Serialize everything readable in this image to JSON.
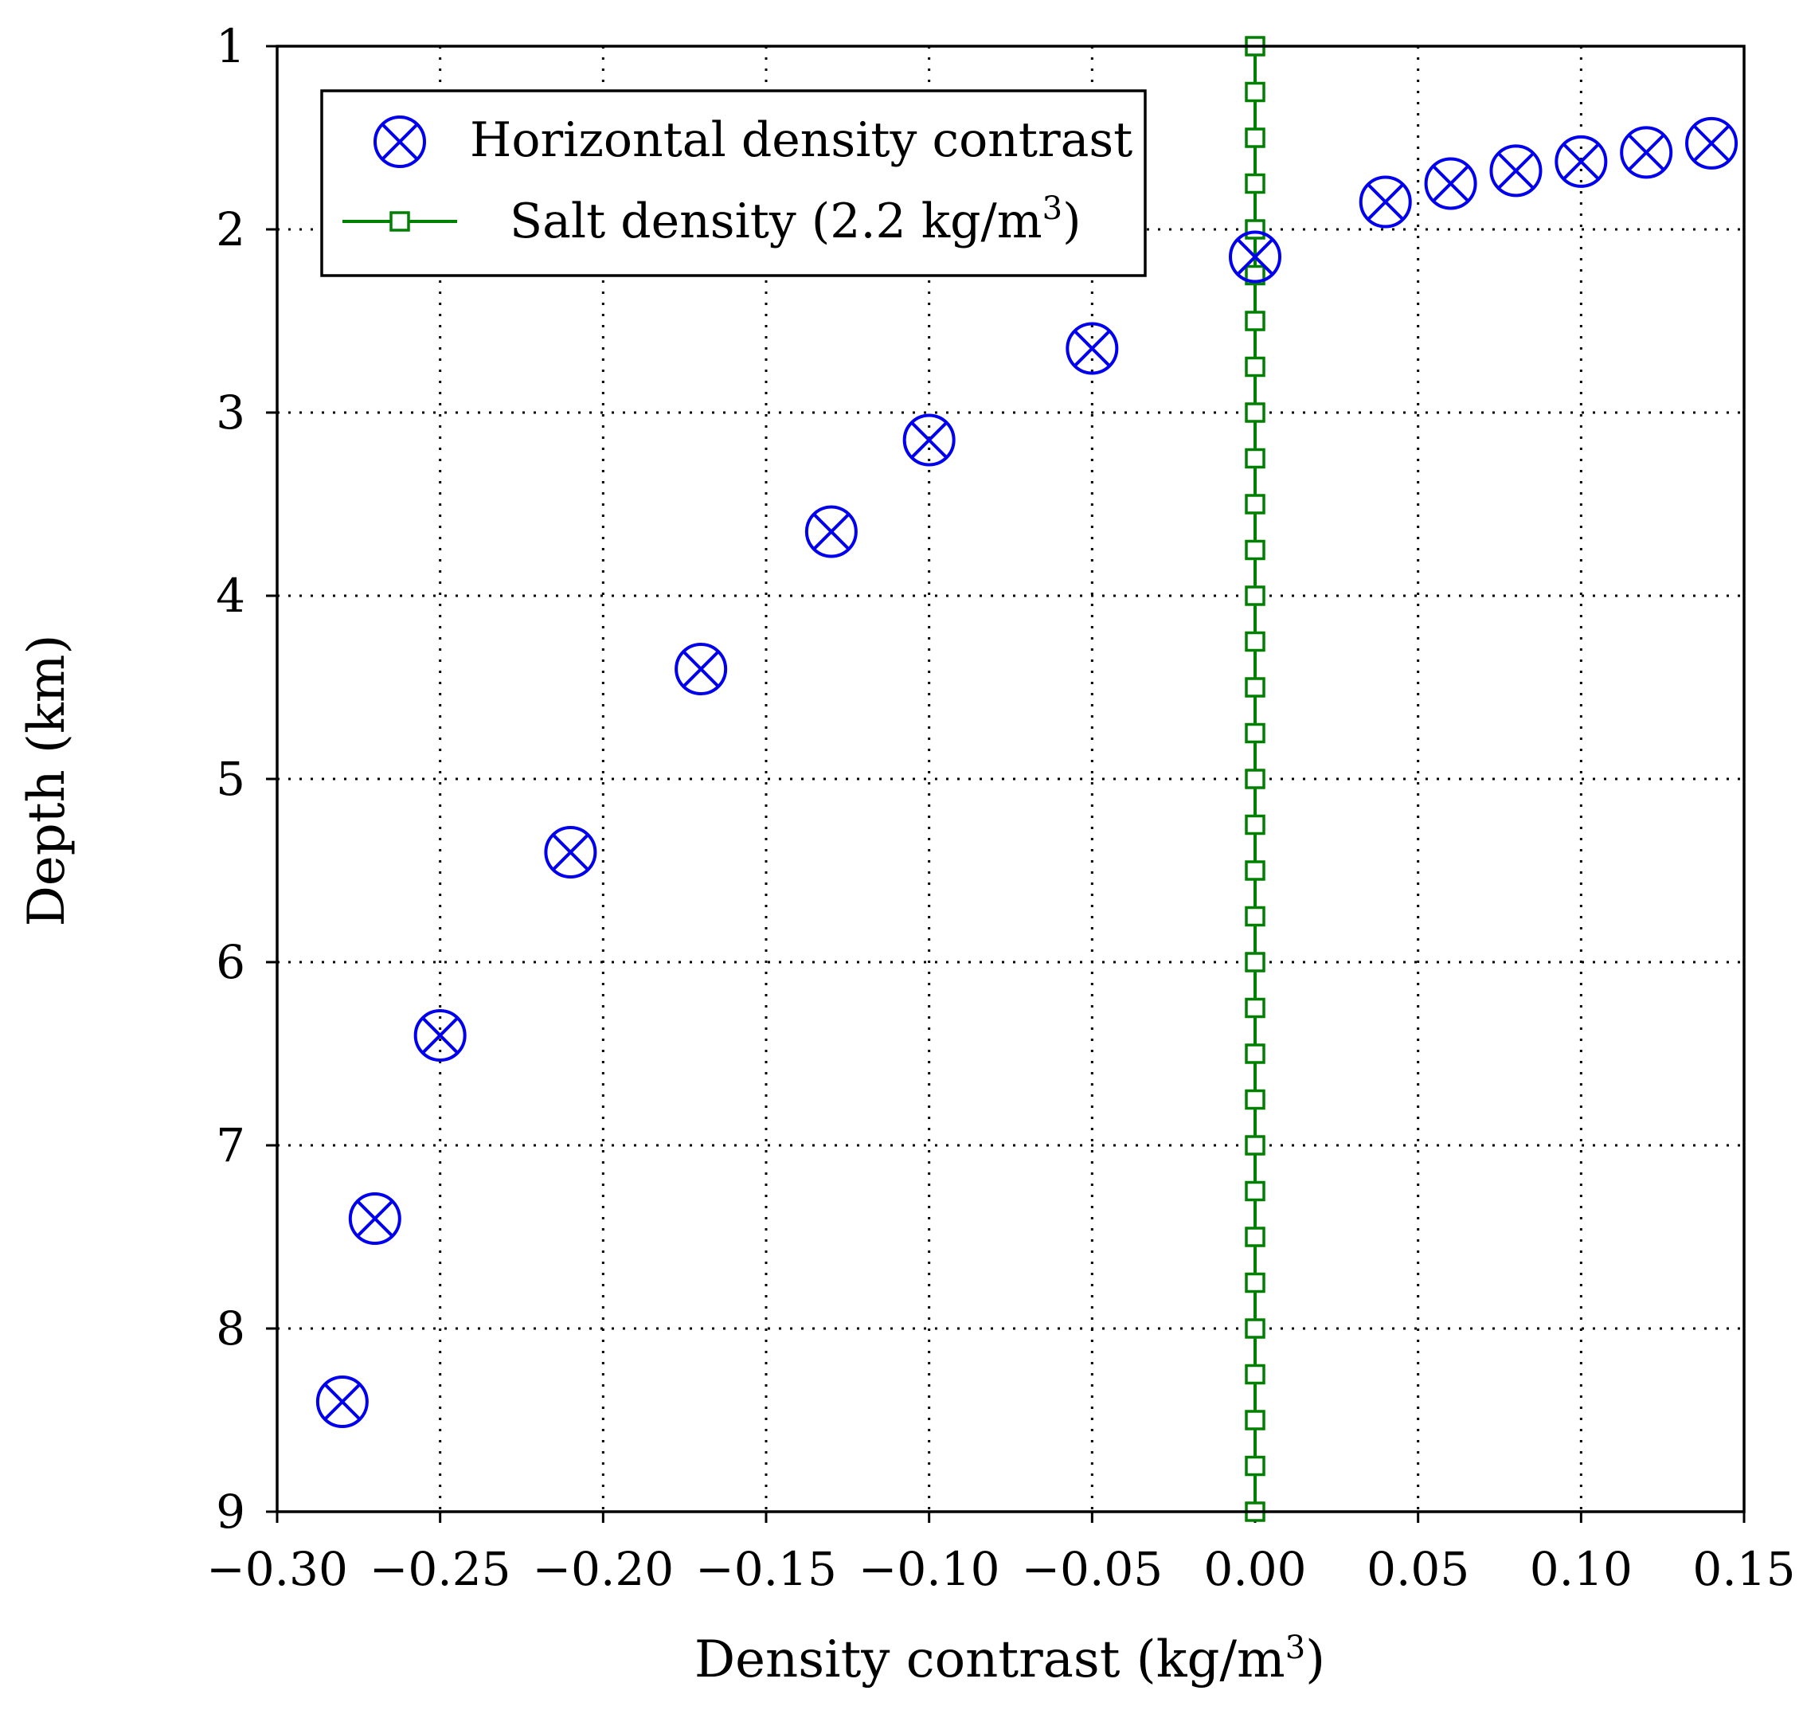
{
  "chart_data": {
    "type": "scatter",
    "xlabel": "Density contrast (kg/m",
    "xlabel_sup": "3",
    "xlabel_close": ")",
    "ylabel": "Depth (km)",
    "xlim": [
      -0.3,
      0.15
    ],
    "ylim": [
      1,
      9
    ],
    "y_inverted": true,
    "grid": true,
    "legend_position": "top-left",
    "x_ticks": [
      -0.3,
      -0.25,
      -0.2,
      -0.15,
      -0.1,
      -0.05,
      0.0,
      0.05,
      0.1,
      0.15
    ],
    "x_tick_labels": [
      "−0.30",
      "−0.25",
      "−0.20",
      "−0.15",
      "−0.10",
      "−0.05",
      "0.00",
      "0.05",
      "0.10",
      "0.15"
    ],
    "y_ticks": [
      1,
      2,
      3,
      4,
      5,
      6,
      7,
      8,
      9
    ],
    "y_tick_labels": [
      "1",
      "2",
      "3",
      "4",
      "5",
      "6",
      "7",
      "8",
      "9"
    ],
    "series": [
      {
        "name": "Horizontal density contrast",
        "marker": "circle-x",
        "color": "#0000ee",
        "points": [
          {
            "x": -0.28,
            "y": 8.4
          },
          {
            "x": -0.27,
            "y": 7.4
          },
          {
            "x": -0.25,
            "y": 6.4
          },
          {
            "x": -0.21,
            "y": 5.4
          },
          {
            "x": -0.17,
            "y": 4.4
          },
          {
            "x": -0.13,
            "y": 3.65
          },
          {
            "x": -0.1,
            "y": 3.15
          },
          {
            "x": -0.05,
            "y": 2.65
          },
          {
            "x": 0.0,
            "y": 2.15
          },
          {
            "x": 0.04,
            "y": 1.85
          },
          {
            "x": 0.06,
            "y": 1.75
          },
          {
            "x": 0.08,
            "y": 1.68
          },
          {
            "x": 0.1,
            "y": 1.63
          },
          {
            "x": 0.12,
            "y": 1.58
          },
          {
            "x": 0.14,
            "y": 1.53
          }
        ]
      },
      {
        "name": "Salt density (2.2 kg/m",
        "name_sup": "3",
        "name_close": ")",
        "marker": "square",
        "color": "#008000",
        "x_constant": 0.0,
        "y_start": 1.0,
        "y_end": 9.0,
        "y_step": 0.25
      }
    ]
  }
}
